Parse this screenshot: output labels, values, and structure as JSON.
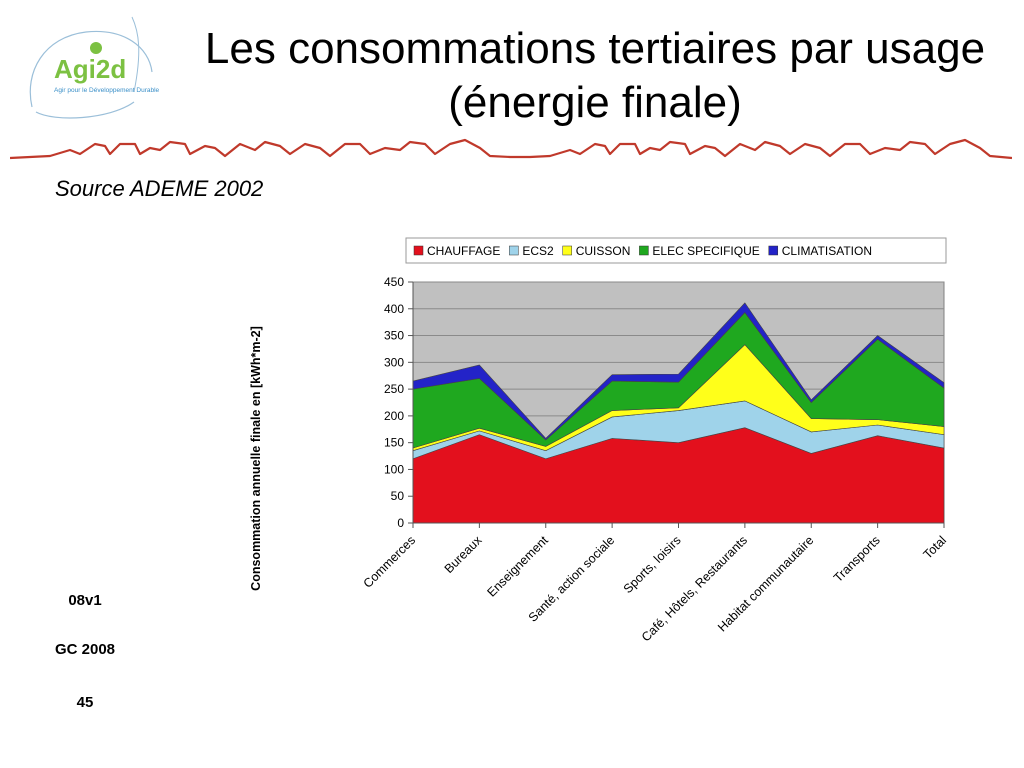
{
  "logo": {
    "name": "Agi2d",
    "tagline": "Agir pour le Développement Durable"
  },
  "slide": {
    "title": "Les consommations tertiaires par usage (énergie finale)",
    "source": "Source ADEME 2002"
  },
  "footer": {
    "version": "08v1",
    "author": "GC 2008",
    "page": "45"
  },
  "colors": {
    "CHAUFFAGE": "#e3101d",
    "ECS2": "#9fd3ea",
    "CUISSON": "#ffff1a",
    "ELEC SPECIFIQUE": "#1fa81f",
    "CLIMATISATION": "#2323c8",
    "plot_bg": "#c0c0c0",
    "divider": "#c0392b",
    "logo_green": "#7cc142",
    "logo_blue": "#3a8fc8"
  },
  "chart_data": {
    "type": "area",
    "stacked": true,
    "title": "",
    "xlabel": "",
    "ylabel": "Consommation annuelle finale en [kWh*m-2]",
    "ylim": [
      0,
      450
    ],
    "yticks": [
      0,
      50,
      100,
      150,
      200,
      250,
      300,
      350,
      400,
      450
    ],
    "grid": true,
    "legend_position": "top",
    "categories": [
      "Commerces",
      "Bureaux",
      "Enseignement",
      "Santé, action sociale",
      "Sports, loisirs",
      "Café, Hôtels, Restaurants",
      "Habitat communautaire",
      "Transports",
      "Total"
    ],
    "series": [
      {
        "name": "CHAUFFAGE",
        "values": [
          120,
          165,
          120,
          158,
          150,
          178,
          130,
          163,
          140
        ]
      },
      {
        "name": "ECS2",
        "values": [
          15,
          7,
          15,
          40,
          60,
          50,
          40,
          20,
          25
        ]
      },
      {
        "name": "CUISSON",
        "values": [
          5,
          5,
          8,
          12,
          5,
          105,
          25,
          10,
          15
        ]
      },
      {
        "name": "ELEC SPECIFIQUE",
        "values": [
          110,
          93,
          12,
          55,
          48,
          60,
          30,
          150,
          72
        ]
      },
      {
        "name": "CLIMATISATION",
        "values": [
          15,
          25,
          3,
          12,
          15,
          18,
          5,
          7,
          10
        ]
      }
    ]
  }
}
